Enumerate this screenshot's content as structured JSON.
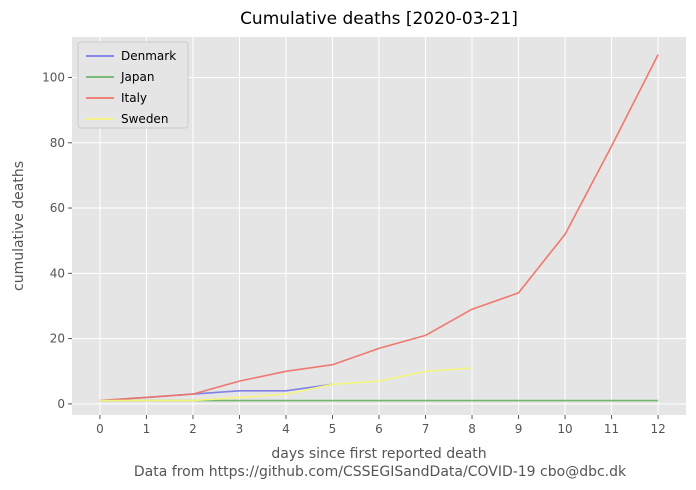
{
  "chart_data": {
    "type": "line",
    "title": "Cumulative deaths [2020-03-21]",
    "xlabel": "days since first reported death",
    "ylabel": "cumulative deaths",
    "footer": "Data from https://github.com/CSSEGISandData/COVID-19 cbo@dbc.dk",
    "xlim": [
      -0.6,
      12.6
    ],
    "ylim": [
      -3.4,
      112.4
    ],
    "xticks": [
      0,
      1,
      2,
      3,
      4,
      5,
      6,
      7,
      8,
      9,
      10,
      11,
      12
    ],
    "yticks": [
      0,
      20,
      40,
      60,
      80,
      100
    ],
    "grid": true,
    "legend_position": "top-left",
    "series": [
      {
        "name": "Denmark",
        "color": "#7b7bea",
        "x": [
          0,
          1,
          2,
          3,
          4,
          5
        ],
        "values": [
          1,
          2,
          3,
          4,
          4,
          6
        ]
      },
      {
        "name": "Japan",
        "color": "#6cb56c",
        "x": [
          0,
          1,
          2,
          3,
          4,
          5,
          6,
          7,
          8,
          9,
          10,
          11,
          12
        ],
        "values": [
          1,
          1,
          1,
          1,
          1,
          1,
          1,
          1,
          1,
          1,
          1,
          1,
          1
        ]
      },
      {
        "name": "Italy",
        "color": "#f07368",
        "x": [
          0,
          1,
          2,
          3,
          4,
          5,
          6,
          7,
          8,
          9,
          10,
          11,
          12
        ],
        "values": [
          1,
          2,
          3,
          7,
          10,
          12,
          17,
          21,
          29,
          34,
          52,
          79,
          107
        ]
      },
      {
        "name": "Sweden",
        "color": "#f5f57a",
        "x": [
          0,
          1,
          2,
          3,
          4,
          5,
          6,
          7,
          8
        ],
        "values": [
          1,
          1,
          1,
          2,
          3,
          6,
          7,
          10,
          11
        ]
      }
    ]
  }
}
